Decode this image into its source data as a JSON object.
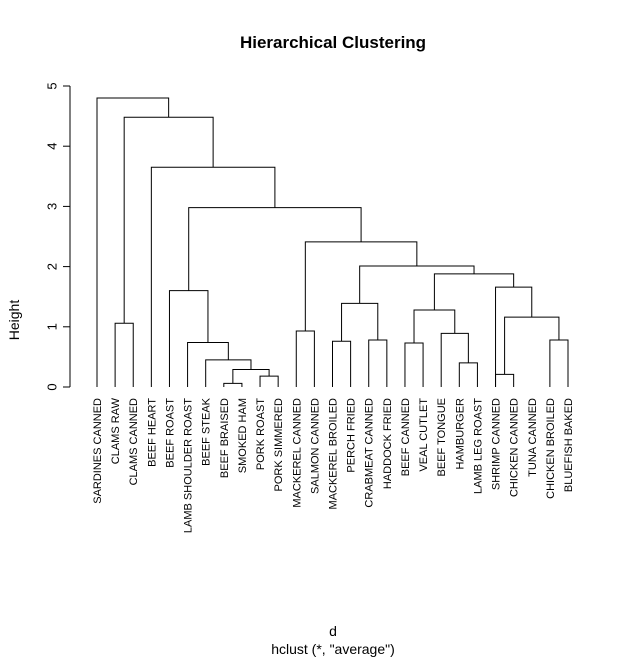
{
  "chart_data": {
    "type": "dendrogram",
    "title": "Hierarchical Clustering",
    "ylabel": "Height",
    "xlabel": "d",
    "subtitle": "hclust (*, \"average\")",
    "ylim": [
      0,
      5
    ],
    "yticks": [
      "0",
      "1",
      "2",
      "3",
      "4",
      "5"
    ],
    "leaves": [
      "SARDINES CANNED",
      "CLAMS RAW",
      "CLAMS CANNED",
      "BEEF HEART",
      "BEEF ROAST",
      "LAMB SHOULDER ROAST",
      "BEEF STEAK",
      "BEEF BRAISED",
      "SMOKED HAM",
      "PORK ROAST",
      "PORK SIMMERED",
      "MACKEREL CANNED",
      "SALMON CANNED",
      "MACKEREL BROILED",
      "PERCH FRIED",
      "CRABMEAT CANNED",
      "HADDOCK FRIED",
      "BEEF CANNED",
      "VEAL CUTLET",
      "BEEF TONGUE",
      "HAMBURGER",
      "LAMB LEG ROAST",
      "SHRIMP CANNED",
      "CHICKEN CANNED",
      "TUNA CANNED",
      "CHICKEN BROILED",
      "BLUEFISH BAKED"
    ],
    "merges": [
      {
        "a": "L8",
        "b": "L9",
        "height": 0.06
      },
      {
        "a": "L10",
        "b": "L11",
        "height": 0.18
      },
      {
        "a": "L23",
        "b": "L24",
        "height": 0.21
      },
      {
        "a": "C0",
        "b": "C1",
        "height": 0.29
      },
      {
        "a": "L21",
        "b": "L22",
        "height": 0.4
      },
      {
        "a": "L7",
        "b": "C3",
        "height": 0.45
      },
      {
        "a": "L18",
        "b": "L19",
        "height": 0.73
      },
      {
        "a": "L6",
        "b": "C5",
        "height": 0.74
      },
      {
        "a": "L14",
        "b": "L15",
        "height": 0.76
      },
      {
        "a": "L16",
        "b": "L17",
        "height": 0.78
      },
      {
        "a": "L26",
        "b": "L27",
        "height": 0.78
      },
      {
        "a": "L20",
        "b": "C4",
        "height": 0.89
      },
      {
        "a": "L12",
        "b": "L13",
        "height": 0.93
      },
      {
        "a": "L2",
        "b": "L3",
        "height": 1.06
      },
      {
        "a": "C2",
        "b": "C10",
        "height": 1.16
      },
      {
        "a": "C6",
        "b": "C11",
        "height": 1.28
      },
      {
        "a": "C8",
        "b": "C9",
        "height": 1.39
      },
      {
        "a": "L5",
        "b": "C7",
        "height": 1.6
      },
      {
        "a": "L23s",
        "b": "C14",
        "height": 1.66
      },
      {
        "a": "C15",
        "b": "C18",
        "height": 1.88
      },
      {
        "a": "C16",
        "b": "C19",
        "height": 2.01
      },
      {
        "a": "C12",
        "b": "C20",
        "height": 2.41
      },
      {
        "a": "C17",
        "b": "C21",
        "height": 2.98
      },
      {
        "a": "L4",
        "b": "C22",
        "height": 3.65
      },
      {
        "a": "C13",
        "b": "C23",
        "height": 4.48
      },
      {
        "a": "L1",
        "b": "C24",
        "height": 4.8
      }
    ]
  }
}
